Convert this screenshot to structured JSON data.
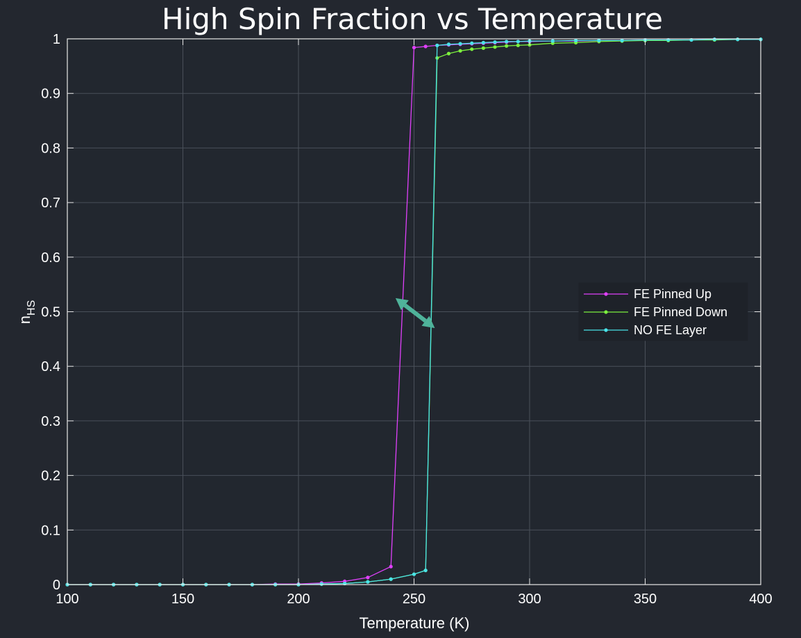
{
  "chart_data": {
    "type": "line",
    "title": "High Spin Fraction vs Temperature",
    "xlabel": "Temperature (K)",
    "ylabel_main": "n",
    "ylabel_sub": "HS",
    "xlim": [
      100,
      400
    ],
    "ylim": [
      0,
      1
    ],
    "xticks": [
      100,
      150,
      200,
      250,
      300,
      350,
      400
    ],
    "xtick_labels": [
      "100",
      "150",
      "200",
      "250",
      "300",
      "350",
      "400"
    ],
    "yticks": [
      0,
      0.1,
      0.2,
      0.3,
      0.4,
      0.5,
      0.6,
      0.7,
      0.8,
      0.9,
      1
    ],
    "ytick_labels": [
      "0",
      "0.1",
      "0.2",
      "0.3",
      "0.4",
      "0.5",
      "0.6",
      "0.7",
      "0.8",
      "0.9",
      "1"
    ],
    "grid": true,
    "legend_position": "right",
    "series": [
      {
        "name": "FE Pinned Up",
        "color": "#e040fb",
        "x": [
          100,
          110,
          120,
          130,
          140,
          150,
          160,
          170,
          180,
          190,
          200,
          210,
          220,
          230,
          240,
          250,
          255,
          260,
          265,
          270,
          275,
          280,
          285,
          290,
          295,
          300,
          310,
          320,
          330,
          340,
          350,
          360,
          370,
          380,
          390,
          400
        ],
        "y": [
          0,
          0,
          0,
          0,
          0,
          0,
          0,
          0,
          0,
          0.001,
          0.001,
          0.003,
          0.006,
          0.013,
          0.033,
          0.984,
          0.986,
          0.988,
          0.989,
          0.99,
          0.991,
          0.992,
          0.993,
          0.994,
          0.995,
          0.995,
          0.996,
          0.996,
          0.997,
          0.997,
          0.998,
          0.998,
          0.998,
          0.999,
          0.999,
          0.999
        ]
      },
      {
        "name": "FE Pinned Down",
        "color": "#7cf03e",
        "x": [
          100,
          110,
          120,
          130,
          140,
          150,
          160,
          170,
          180,
          190,
          200,
          210,
          220,
          230,
          240,
          250,
          255,
          260,
          265,
          270,
          275,
          280,
          285,
          290,
          295,
          300,
          310,
          320,
          330,
          340,
          350,
          360,
          370,
          380,
          390,
          400
        ],
        "y": [
          0,
          0,
          0,
          0,
          0,
          0,
          0,
          0,
          0,
          0,
          0,
          0.001,
          0.002,
          0.005,
          0.01,
          0.019,
          0.026,
          0.965,
          0.973,
          0.978,
          0.981,
          0.983,
          0.985,
          0.987,
          0.988,
          0.989,
          0.992,
          0.993,
          0.995,
          0.996,
          0.997,
          0.997,
          0.998,
          0.998,
          0.999,
          0.999
        ]
      },
      {
        "name": "NO FE Layer",
        "color": "#49e3e8",
        "x": [
          100,
          110,
          120,
          130,
          140,
          150,
          160,
          170,
          180,
          190,
          200,
          210,
          220,
          230,
          240,
          250,
          255,
          260,
          265,
          270,
          275,
          280,
          285,
          290,
          295,
          300,
          310,
          320,
          330,
          340,
          350,
          360,
          370,
          380,
          390,
          400
        ],
        "y": [
          0,
          0,
          0,
          0,
          0,
          0,
          0,
          0,
          0,
          0,
          0,
          0.001,
          0.002,
          0.005,
          0.01,
          0.019,
          0.026,
          0.988,
          0.99,
          0.991,
          0.992,
          0.993,
          0.994,
          0.995,
          0.995,
          0.996,
          0.996,
          0.997,
          0.997,
          0.997,
          0.998,
          0.998,
          0.998,
          0.999,
          0.999,
          0.999
        ]
      }
    ],
    "annotation": {
      "type": "double-arrow",
      "color": "#4fb39a",
      "from": [
        242,
        0.525
      ],
      "to": [
        259,
        0.47
      ]
    }
  }
}
